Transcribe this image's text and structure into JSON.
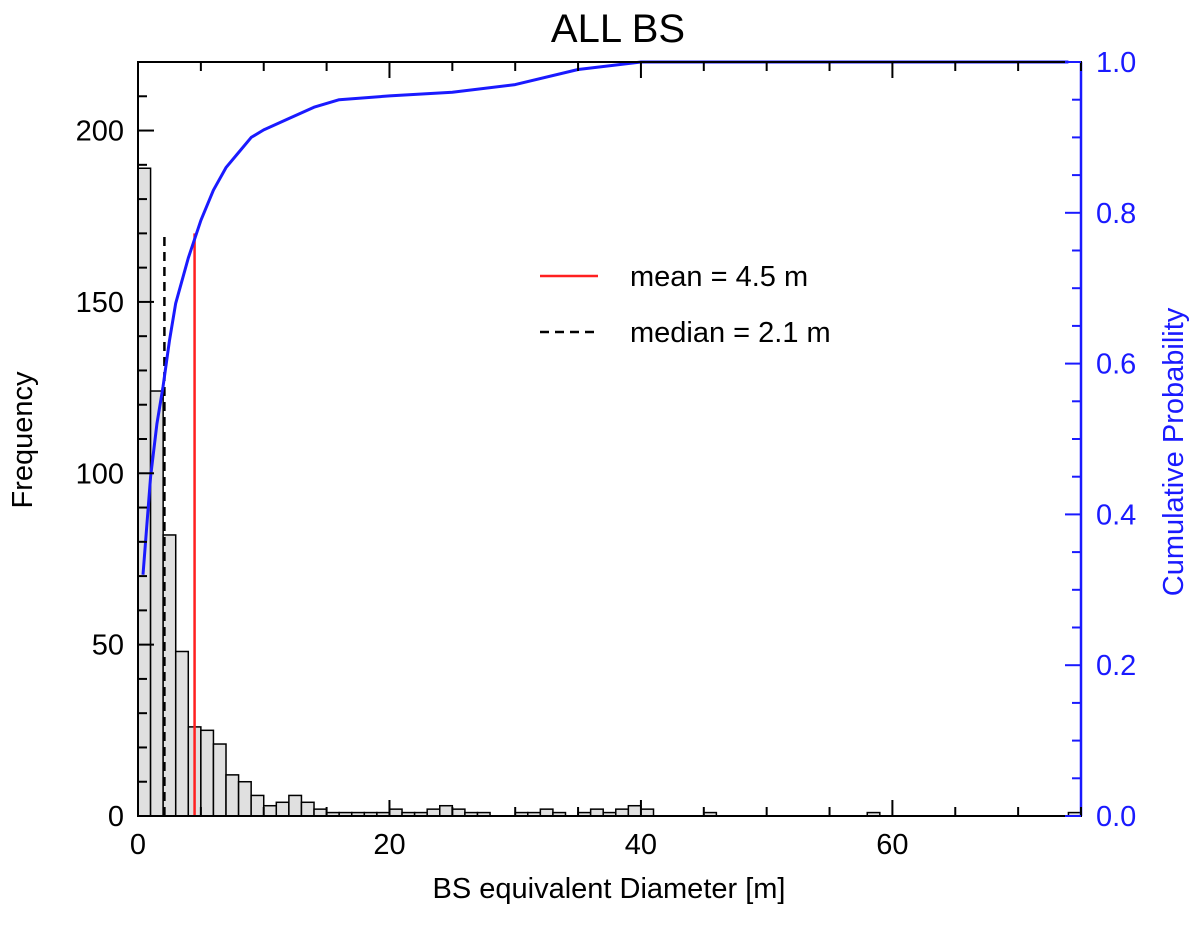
{
  "chart_data": {
    "type": "bar",
    "title": "ALL BS",
    "xlabel": "BS equivalent Diameter [m]",
    "ylabel": "Frequency",
    "y2label": "Cumulative Probability",
    "xlim": [
      0,
      75
    ],
    "ylim": [
      0,
      220
    ],
    "y2lim": [
      0,
      1
    ],
    "x_ticks": [
      0,
      20,
      40,
      60
    ],
    "y_ticks": [
      0,
      50,
      100,
      150,
      200
    ],
    "y2_ticks": [
      "0.0",
      "0.2",
      "0.4",
      "0.6",
      "0.8",
      "1.0"
    ],
    "bin_width": 1,
    "histogram": {
      "bin_starts": [
        0,
        1,
        2,
        3,
        4,
        5,
        6,
        7,
        8,
        9,
        10,
        11,
        12,
        13,
        14,
        15,
        16,
        17,
        18,
        19,
        20,
        21,
        22,
        23,
        24,
        25,
        26,
        27,
        28,
        29,
        30,
        31,
        32,
        33,
        34,
        35,
        36,
        37,
        38,
        39,
        40,
        41,
        42,
        43,
        44,
        45,
        46,
        47,
        48,
        49,
        50,
        51,
        52,
        53,
        54,
        55,
        56,
        57,
        58,
        59,
        60,
        61,
        62,
        63,
        64,
        65,
        66,
        67,
        68,
        69,
        70,
        71,
        72,
        73,
        74
      ],
      "values": [
        189,
        124,
        82,
        48,
        26,
        25,
        21,
        12,
        10,
        6,
        3,
        4,
        6,
        4,
        2,
        1,
        1,
        1,
        1,
        1,
        2,
        1,
        1,
        2,
        3,
        2,
        1,
        1,
        0,
        0,
        1,
        1,
        2,
        1,
        0,
        1,
        2,
        1,
        2,
        3,
        2,
        0,
        0,
        0,
        0,
        1,
        0,
        0,
        0,
        0,
        0,
        0,
        0,
        0,
        0,
        0,
        0,
        0,
        1,
        0,
        0,
        0,
        0,
        0,
        0,
        0,
        0,
        0,
        0,
        0,
        0,
        0,
        0,
        0,
        1
      ]
    },
    "cumulative": {
      "x": [
        0.4,
        1,
        1.5,
        2,
        2.5,
        3,
        4,
        5,
        6,
        7,
        8,
        9,
        10,
        12,
        14,
        16,
        20,
        25,
        30,
        35,
        40,
        50,
        60,
        74
      ],
      "y": [
        0.32,
        0.45,
        0.52,
        0.57,
        0.63,
        0.68,
        0.74,
        0.79,
        0.83,
        0.86,
        0.88,
        0.9,
        0.91,
        0.925,
        0.94,
        0.95,
        0.955,
        0.96,
        0.97,
        0.99,
        1.0,
        1.0,
        1.0,
        1.0
      ]
    },
    "vlines": [
      {
        "name": "mean  = 4.5 m",
        "x": 4.5,
        "y_top": 170,
        "color": "#ff2020",
        "dash": "solid"
      },
      {
        "name": "median = 2.1 m",
        "x": 2.1,
        "y_top": 170,
        "color": "#000000",
        "dash": "dashed"
      }
    ],
    "legend": {
      "placement": "upper-right-center",
      "items": [
        "mean  = 4.5 m",
        "median = 2.1 m"
      ]
    },
    "colors": {
      "bar_fill": "#e0e0e0",
      "bar_edge": "#000000",
      "cumulative": "#1a1aff",
      "mean": "#ff2020",
      "median": "#000000"
    }
  }
}
